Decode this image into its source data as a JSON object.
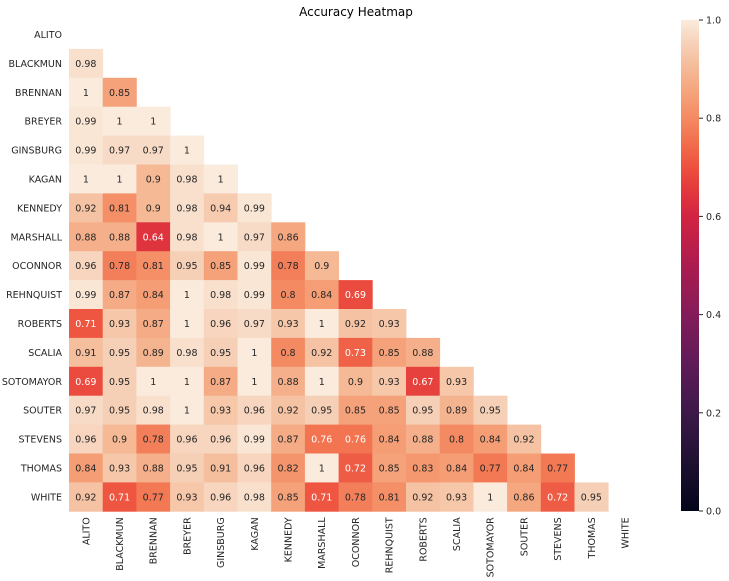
{
  "chart_data": {
    "type": "heatmap",
    "title": "Accuracy Heatmap",
    "xlabel": "",
    "ylabel": "",
    "rows": [
      "ALITO",
      "BLACKMUN",
      "BRENNAN",
      "BREYER",
      "GINSBURG",
      "KAGAN",
      "KENNEDY",
      "MARSHALL",
      "OCONNOR",
      "REHNQUIST",
      "ROBERTS",
      "SCALIA",
      "SOTOMAYOR",
      "SOUTER",
      "STEVENS",
      "THOMAS",
      "WHITE"
    ],
    "columns": [
      "ALITO",
      "BLACKMUN",
      "BRENNAN",
      "BREYER",
      "GINSBURG",
      "KAGAN",
      "KENNEDY",
      "MARSHALL",
      "OCONNOR",
      "REHNQUIST",
      "ROBERTS",
      "SCALIA",
      "SOTOMAYOR",
      "SOUTER",
      "STEVENS",
      "THOMAS",
      "WHITE"
    ],
    "mask": "upper triangle including diagonal",
    "values": [
      [],
      [
        0.98
      ],
      [
        1,
        0.85
      ],
      [
        0.99,
        1,
        1
      ],
      [
        0.99,
        0.97,
        0.97,
        1
      ],
      [
        1,
        1,
        0.9,
        0.98,
        1
      ],
      [
        0.92,
        0.81,
        0.9,
        0.98,
        0.94,
        0.99
      ],
      [
        0.88,
        0.88,
        0.64,
        0.98,
        1,
        0.97,
        0.86
      ],
      [
        0.96,
        0.78,
        0.81,
        0.95,
        0.85,
        0.99,
        0.78,
        0.9
      ],
      [
        0.99,
        0.87,
        0.84,
        1,
        0.98,
        0.99,
        0.8,
        0.84,
        0.69
      ],
      [
        0.71,
        0.93,
        0.87,
        1,
        0.96,
        0.97,
        0.93,
        1,
        0.92,
        0.93
      ],
      [
        0.91,
        0.95,
        0.89,
        0.98,
        0.95,
        1,
        0.8,
        0.92,
        0.73,
        0.85,
        0.88
      ],
      [
        0.69,
        0.95,
        1,
        1,
        0.87,
        1,
        0.88,
        1,
        0.9,
        0.93,
        0.67,
        0.93
      ],
      [
        0.97,
        0.95,
        0.98,
        1,
        0.93,
        0.96,
        0.92,
        0.95,
        0.85,
        0.85,
        0.95,
        0.89,
        0.95
      ],
      [
        0.96,
        0.9,
        0.78,
        0.96,
        0.96,
        0.99,
        0.87,
        0.76,
        0.76,
        0.84,
        0.88,
        0.8,
        0.84,
        0.92
      ],
      [
        0.84,
        0.93,
        0.88,
        0.95,
        0.91,
        0.96,
        0.82,
        1,
        0.72,
        0.85,
        0.83,
        0.84,
        0.77,
        0.84,
        0.77
      ],
      [
        0.92,
        0.71,
        0.77,
        0.93,
        0.96,
        0.98,
        0.85,
        0.71,
        0.78,
        0.81,
        0.92,
        0.93,
        1,
        0.86,
        0.72,
        0.95
      ]
    ],
    "colorbar": {
      "colormap": "rocket",
      "range": [
        0.0,
        1.0
      ],
      "ticks": [
        "0.0",
        "0.2",
        "0.4",
        "0.6",
        "0.8",
        "1.0"
      ]
    }
  }
}
